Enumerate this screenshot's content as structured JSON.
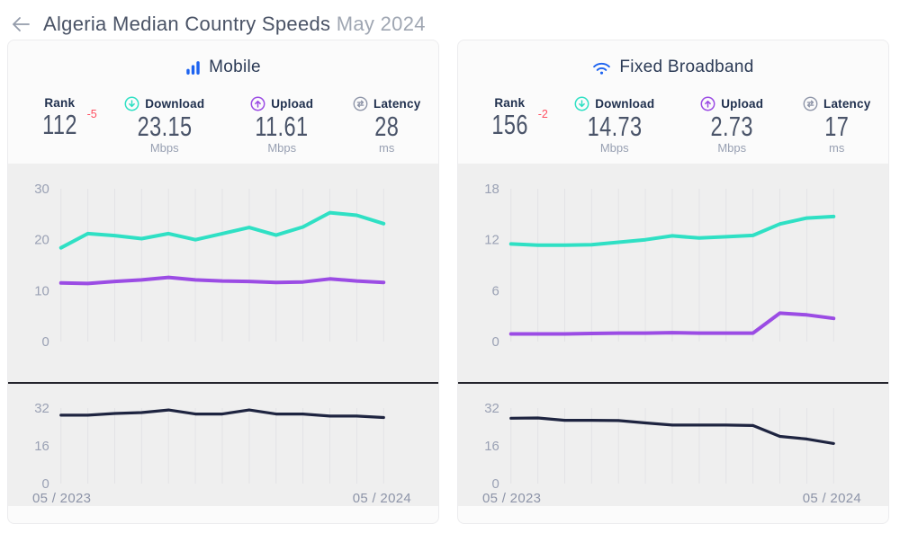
{
  "page": {
    "title": "Algeria Median Country Speeds",
    "title_suffix": "May 2024"
  },
  "colors": {
    "brand_blue": "#1d63f0",
    "download_teal": "#2fe0c4",
    "upload_purple": "#9b4ce4",
    "latency_navy": "#1e2440",
    "rank_delta_red": "#ff4d5f"
  },
  "panels": [
    {
      "title": "Mobile",
      "stats": [
        {
          "label": "Rank",
          "value": "112",
          "delta": "-5",
          "unit": ""
        },
        {
          "label": "Download",
          "value": "23.15",
          "unit": "Mbps"
        },
        {
          "label": "Upload",
          "value": "11.61",
          "unit": "Mbps"
        },
        {
          "label": "Latency",
          "value": "28",
          "unit": "ms"
        }
      ],
      "x_start_label": "05 / 2023",
      "x_end_label": "05 / 2024"
    },
    {
      "title": "Fixed Broadband",
      "stats": [
        {
          "label": "Rank",
          "value": "156",
          "delta": "-2",
          "unit": ""
        },
        {
          "label": "Download",
          "value": "14.73",
          "unit": "Mbps"
        },
        {
          "label": "Upload",
          "value": "2.73",
          "unit": "Mbps"
        },
        {
          "label": "Latency",
          "value": "17",
          "unit": "ms"
        }
      ],
      "x_start_label": "05 / 2023",
      "x_end_label": "05 / 2024"
    }
  ],
  "chart_data": [
    {
      "id": "mobile-speed",
      "kind": "speed",
      "type": "line",
      "title": "Mobile median speeds, May 2023 - May 2024",
      "unit": "Mbps",
      "x_count": 13,
      "x_range_labels": [
        "05 / 2023",
        "05 / 2024"
      ],
      "yticks": [
        0,
        10,
        20,
        30
      ],
      "ylim": [
        0,
        30
      ],
      "grid": "vertical-only",
      "legend": "none",
      "series": [
        {
          "name": "Download",
          "color": "#2fe0c4",
          "values": [
            18.4,
            21.2,
            20.8,
            20.2,
            21.2,
            20.0,
            21.2,
            22.4,
            20.9,
            22.5,
            25.3,
            24.8,
            23.15
          ]
        },
        {
          "name": "Upload",
          "color": "#9b4ce4",
          "values": [
            11.5,
            11.4,
            11.8,
            12.1,
            12.6,
            12.1,
            11.9,
            11.8,
            11.6,
            11.7,
            12.3,
            11.9,
            11.61
          ]
        }
      ]
    },
    {
      "id": "mobile-latency",
      "kind": "latency",
      "type": "line",
      "title": "Mobile median latency, May 2023 - May 2024",
      "unit": "ms",
      "x_count": 13,
      "x_range_labels": [
        "05 / 2023",
        "05 / 2024"
      ],
      "yticks": [
        0,
        16,
        32
      ],
      "ylim": [
        0,
        32
      ],
      "grid": "vertical-only",
      "legend": "none",
      "series": [
        {
          "name": "Latency",
          "color": "#1e2440",
          "values": [
            29,
            29,
            29.7,
            30.1,
            31.2,
            29.5,
            29.5,
            31.2,
            29.5,
            29.5,
            28.6,
            28.6,
            28
          ]
        }
      ]
    },
    {
      "id": "fixed-speed",
      "kind": "speed",
      "type": "line",
      "title": "Fixed broadband median speeds, May 2023 - May 2024",
      "unit": "Mbps",
      "x_count": 13,
      "x_range_labels": [
        "05 / 2023",
        "05 / 2024"
      ],
      "yticks": [
        0,
        6,
        12,
        18
      ],
      "ylim": [
        0,
        18
      ],
      "grid": "vertical-only",
      "legend": "none",
      "series": [
        {
          "name": "Download",
          "color": "#2fe0c4",
          "values": [
            11.5,
            11.35,
            11.35,
            11.4,
            11.7,
            12.0,
            12.45,
            12.2,
            12.35,
            12.5,
            13.85,
            14.55,
            14.73
          ]
        },
        {
          "name": "Upload",
          "color": "#9b4ce4",
          "values": [
            0.9,
            0.9,
            0.9,
            0.95,
            1.0,
            1.0,
            1.05,
            1.0,
            1.0,
            1.0,
            3.35,
            3.15,
            2.73
          ]
        }
      ]
    },
    {
      "id": "fixed-latency",
      "kind": "latency",
      "type": "line",
      "title": "Fixed broadband median latency, May 2023 - May 2024",
      "unit": "ms",
      "x_count": 13,
      "x_range_labels": [
        "05 / 2023",
        "05 / 2024"
      ],
      "yticks": [
        0,
        16,
        32
      ],
      "ylim": [
        0,
        32
      ],
      "grid": "vertical-only",
      "legend": "none",
      "series": [
        {
          "name": "Latency",
          "color": "#1e2440",
          "values": [
            27.7,
            27.8,
            26.8,
            26.8,
            26.7,
            25.7,
            24.8,
            24.8,
            24.8,
            24.6,
            20.0,
            18.9,
            17
          ]
        }
      ]
    }
  ]
}
